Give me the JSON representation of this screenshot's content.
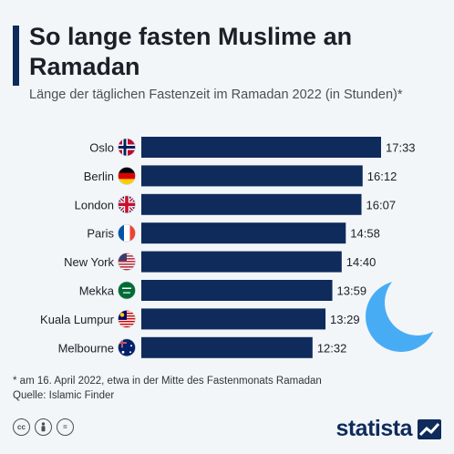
{
  "header": {
    "title": "So lange fasten Muslime an Ramadan",
    "subtitle": "Länge der täglichen Fastenzeit im Ramadan 2022 (in Stunden)*"
  },
  "colors": {
    "bar": "#0f2b5b",
    "moon": "#3fa9f5"
  },
  "chart_data": {
    "type": "bar",
    "orientation": "horizontal",
    "categories": [
      "Oslo",
      "Berlin",
      "London",
      "Paris",
      "New York",
      "Mekka",
      "Kuala Lumpur",
      "Melbourne"
    ],
    "values": [
      17.55,
      16.2,
      16.117,
      14.967,
      14.667,
      13.983,
      13.483,
      12.533
    ],
    "value_labels": [
      "17:33",
      "16:12",
      "16:07",
      "14:58",
      "14:40",
      "13:59",
      "13:29",
      "12:32"
    ],
    "flags": [
      "flag-norway-icon",
      "flag-germany-icon",
      "flag-uk-icon",
      "flag-france-icon",
      "flag-usa-icon",
      "flag-saudi-arabia-icon",
      "flag-malaysia-icon",
      "flag-australia-icon"
    ],
    "grid": false,
    "legend": "none"
  },
  "footer": {
    "footnote": "* am 16. April 2022, etwa in der Mitte des Fastenmonats Ramadan",
    "source": "Quelle: Islamic Finder",
    "license_icons": [
      "cc-icon",
      "by-icon",
      "nd-icon"
    ],
    "cc_text": "cc",
    "nd_text": "=",
    "logo_text": "statista"
  }
}
